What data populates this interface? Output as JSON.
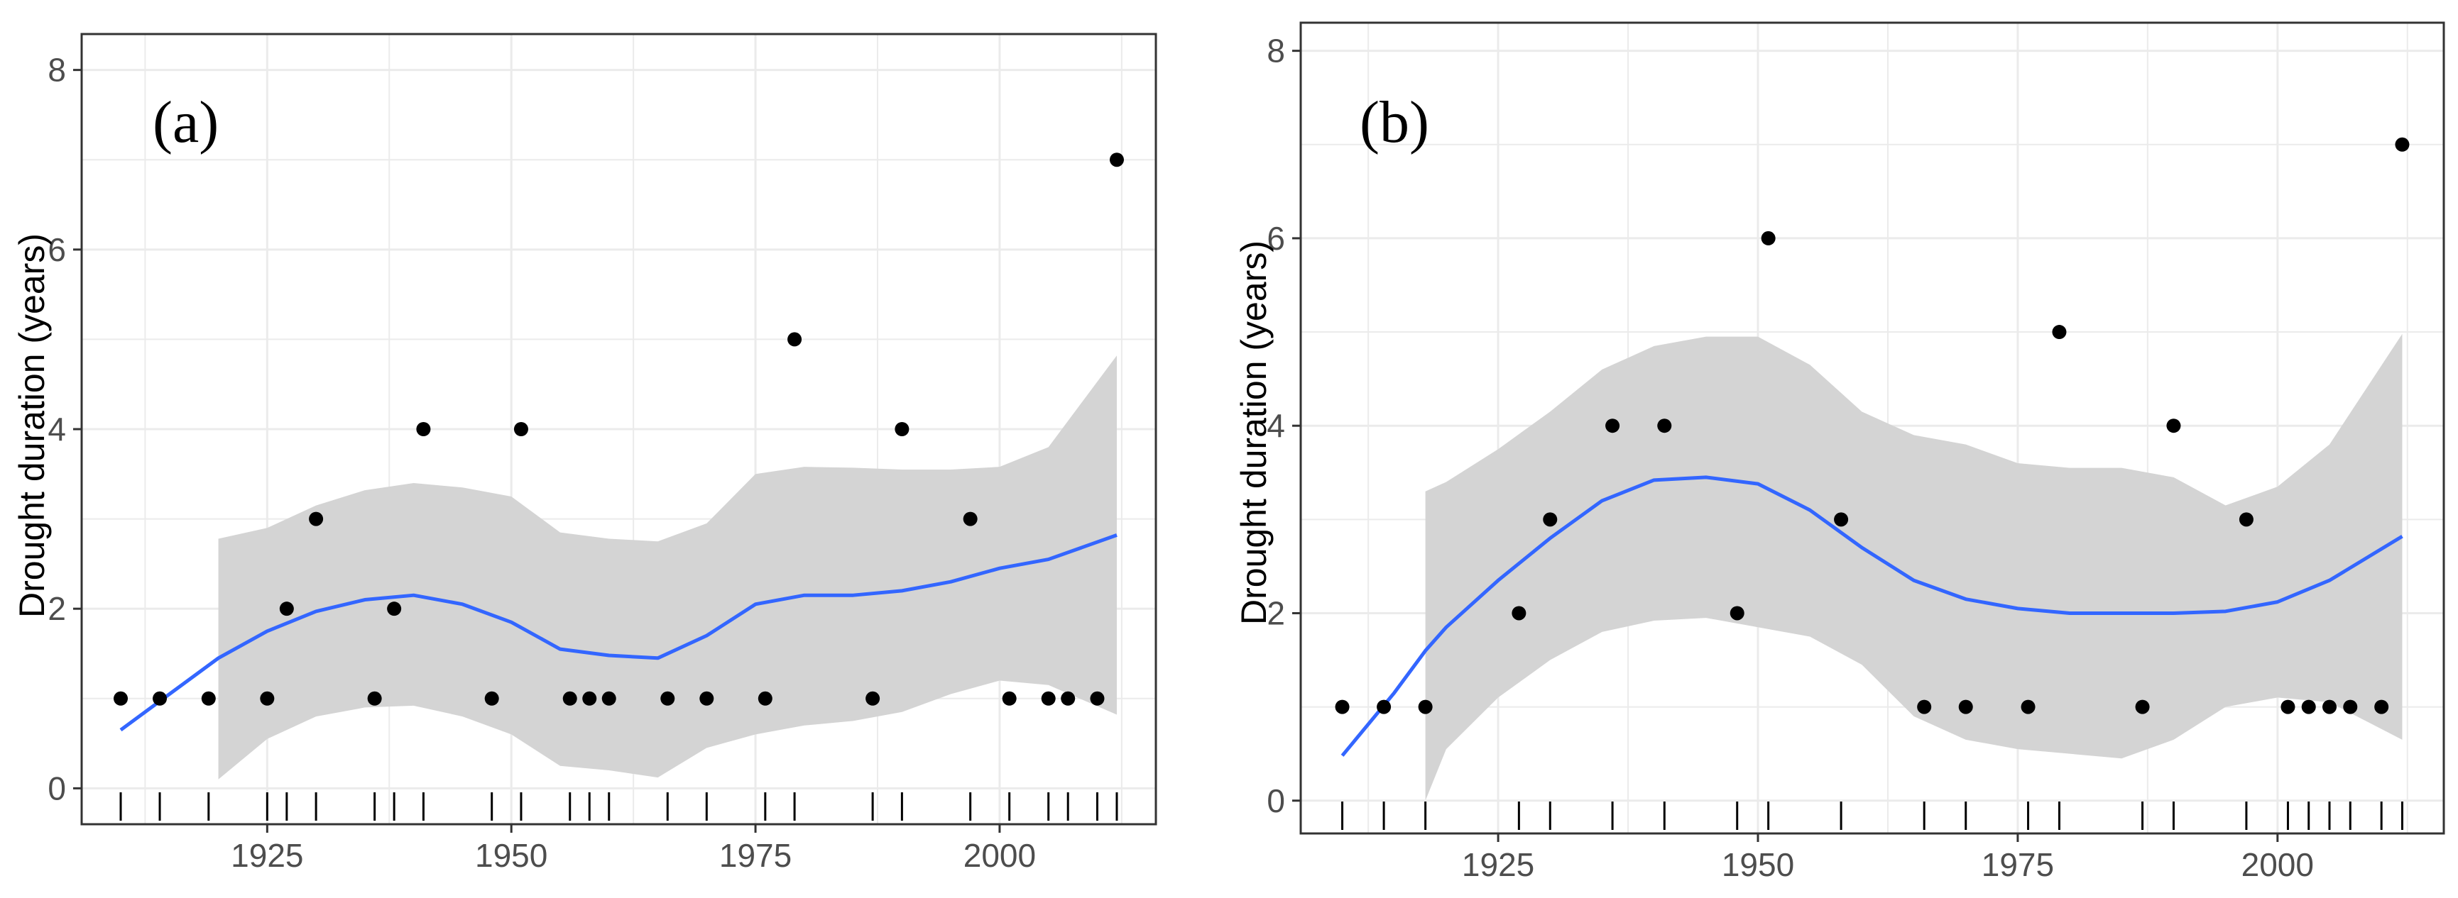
{
  "chart_data": [
    {
      "type": "scatter",
      "panel_label": "(a)",
      "ylabel": "Drought duration (years)",
      "xlabel": "",
      "xlim": [
        1906,
        2016
      ],
      "ylim": [
        -0.4,
        8.4
      ],
      "x_ticks": [
        1925,
        1950,
        1975,
        2000
      ],
      "y_ticks": [
        0,
        2,
        4,
        6,
        8
      ],
      "grid": true,
      "points": [
        {
          "x": 1910,
          "y": 1
        },
        {
          "x": 1914,
          "y": 1
        },
        {
          "x": 1919,
          "y": 1
        },
        {
          "x": 1925,
          "y": 1
        },
        {
          "x": 1927,
          "y": 2
        },
        {
          "x": 1930,
          "y": 3
        },
        {
          "x": 1936,
          "y": 1
        },
        {
          "x": 1938,
          "y": 2
        },
        {
          "x": 1941,
          "y": 4
        },
        {
          "x": 1948,
          "y": 1
        },
        {
          "x": 1951,
          "y": 4
        },
        {
          "x": 1956,
          "y": 1
        },
        {
          "x": 1958,
          "y": 1
        },
        {
          "x": 1960,
          "y": 1
        },
        {
          "x": 1966,
          "y": 1
        },
        {
          "x": 1970,
          "y": 1
        },
        {
          "x": 1976,
          "y": 1
        },
        {
          "x": 1979,
          "y": 5
        },
        {
          "x": 1987,
          "y": 1
        },
        {
          "x": 1990,
          "y": 4
        },
        {
          "x": 1997,
          "y": 3
        },
        {
          "x": 2001,
          "y": 1
        },
        {
          "x": 2005,
          "y": 1
        },
        {
          "x": 2007,
          "y": 1
        },
        {
          "x": 2010,
          "y": 1
        },
        {
          "x": 2012,
          "y": 7
        }
      ],
      "rug_x": [
        1910,
        1914,
        1919,
        1925,
        1927,
        1930,
        1936,
        1938,
        1941,
        1948,
        1951,
        1956,
        1958,
        1960,
        1966,
        1970,
        1976,
        1979,
        1987,
        1990,
        1997,
        2001,
        2005,
        2007,
        2010,
        2012
      ],
      "smooth": {
        "x": [
          1910,
          1915,
          1920,
          1925,
          1930,
          1935,
          1940,
          1945,
          1950,
          1955,
          1960,
          1965,
          1970,
          1975,
          1980,
          1985,
          1990,
          1995,
          2000,
          2005,
          2012
        ],
        "y": [
          0.65,
          1.05,
          1.45,
          1.75,
          1.97,
          2.1,
          2.15,
          2.05,
          1.85,
          1.55,
          1.48,
          1.45,
          1.7,
          2.05,
          2.15,
          2.15,
          2.2,
          2.3,
          2.45,
          2.55,
          2.82
        ],
        "lower": [
          null,
          null,
          0.1,
          0.55,
          0.8,
          0.9,
          0.92,
          0.8,
          0.6,
          0.25,
          0.2,
          0.12,
          0.45,
          0.6,
          0.7,
          0.75,
          0.85,
          1.05,
          1.2,
          1.15,
          0.82
        ],
        "upper": [
          null,
          null,
          2.78,
          2.9,
          3.15,
          3.32,
          3.4,
          3.35,
          3.25,
          2.85,
          2.78,
          2.75,
          2.95,
          3.5,
          3.58,
          3.57,
          3.55,
          3.55,
          3.58,
          3.8,
          4.82
        ]
      },
      "colors": {
        "smooth": "#3366ff",
        "ribbon": "#d4d4d4",
        "point": "#000000",
        "grid": "#ebebeb",
        "frame": "#333333"
      }
    },
    {
      "type": "scatter",
      "panel_label": "(b)",
      "ylabel": "Drought duration (years)",
      "xlabel": "",
      "xlim": [
        1906,
        2016
      ],
      "ylim": [
        -0.4,
        8.4
      ],
      "x_ticks": [
        1925,
        1950,
        1975,
        2000
      ],
      "y_ticks": [
        0,
        2,
        4,
        6,
        8
      ],
      "grid": true,
      "points": [
        {
          "x": 1910,
          "y": 1
        },
        {
          "x": 1914,
          "y": 1
        },
        {
          "x": 1918,
          "y": 1
        },
        {
          "x": 1927,
          "y": 2
        },
        {
          "x": 1930,
          "y": 3
        },
        {
          "x": 1936,
          "y": 4
        },
        {
          "x": 1941,
          "y": 4
        },
        {
          "x": 1948,
          "y": 2
        },
        {
          "x": 1951,
          "y": 6
        },
        {
          "x": 1958,
          "y": 3
        },
        {
          "x": 1966,
          "y": 1
        },
        {
          "x": 1970,
          "y": 1
        },
        {
          "x": 1976,
          "y": 1
        },
        {
          "x": 1979,
          "y": 5
        },
        {
          "x": 1987,
          "y": 1
        },
        {
          "x": 1990,
          "y": 4
        },
        {
          "x": 1997,
          "y": 3
        },
        {
          "x": 2001,
          "y": 1
        },
        {
          "x": 2003,
          "y": 1
        },
        {
          "x": 2005,
          "y": 1
        },
        {
          "x": 2007,
          "y": 1
        },
        {
          "x": 2010,
          "y": 1
        },
        {
          "x": 2012,
          "y": 7
        }
      ],
      "rug_x": [
        1910,
        1914,
        1918,
        1927,
        1930,
        1936,
        1941,
        1948,
        1951,
        1958,
        1966,
        1970,
        1976,
        1979,
        1987,
        1990,
        1997,
        2001,
        2003,
        2005,
        2007,
        2010,
        2012
      ],
      "smooth": {
        "x": [
          1910,
          1915,
          1918,
          1920,
          1925,
          1930,
          1935,
          1940,
          1945,
          1950,
          1955,
          1960,
          1965,
          1970,
          1975,
          1980,
          1985,
          1990,
          1995,
          2000,
          2005,
          2012
        ],
        "y": [
          0.48,
          1.15,
          1.6,
          1.85,
          2.35,
          2.8,
          3.2,
          3.42,
          3.45,
          3.38,
          3.1,
          2.7,
          2.35,
          2.15,
          2.05,
          2.0,
          2.0,
          2.0,
          2.02,
          2.12,
          2.35,
          2.82
        ],
        "lower": [
          null,
          null,
          0.0,
          0.55,
          1.1,
          1.5,
          1.8,
          1.92,
          1.95,
          1.85,
          1.75,
          1.45,
          0.9,
          0.65,
          0.55,
          0.5,
          0.45,
          0.65,
          1.0,
          1.1,
          1.05,
          0.65
        ],
        "upper": [
          null,
          null,
          3.3,
          3.4,
          3.75,
          4.15,
          4.6,
          4.85,
          4.95,
          4.95,
          4.65,
          4.15,
          3.9,
          3.8,
          3.6,
          3.55,
          3.55,
          3.45,
          3.15,
          3.35,
          3.8,
          4.98
        ]
      },
      "colors": {
        "smooth": "#3366ff",
        "ribbon": "#d4d4d4",
        "point": "#000000",
        "grid": "#ebebeb",
        "frame": "#333333"
      }
    }
  ]
}
